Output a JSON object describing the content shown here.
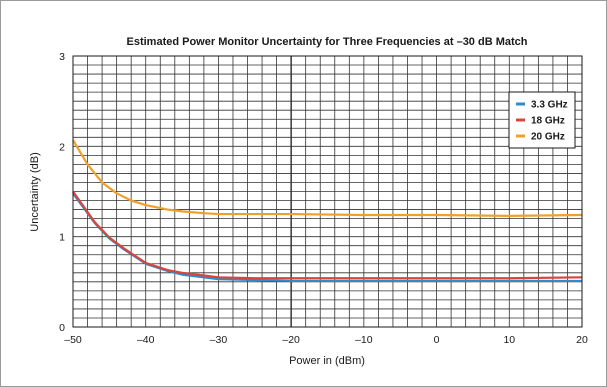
{
  "chart_data": {
    "type": "line",
    "title": "Estimated Power Monitor Uncertainty for Three Frequencies at –30 dB Match",
    "xlabel": "Power in (dBm)",
    "ylabel": "Uncertainty (dB)",
    "xlim": [
      -50,
      20
    ],
    "ylim": [
      0,
      3
    ],
    "x_ticks": [
      -50,
      -40,
      -30,
      -20,
      -10,
      0,
      10,
      20
    ],
    "x_tick_labels": [
      "–50",
      "–40",
      "–30",
      "–20",
      "–10",
      "0",
      "10",
      "20"
    ],
    "y_ticks": [
      0,
      1,
      2,
      3
    ],
    "y_tick_labels": [
      "0",
      "1",
      "2",
      "3"
    ],
    "grid": true,
    "legend_position": "top-right",
    "series": [
      {
        "name": "3.3 GHz",
        "color": "#2e8bcc",
        "x": [
          -50,
          -47,
          -45,
          -43,
          -40,
          -37,
          -35,
          -32,
          -30,
          -25,
          -20,
          -10,
          0,
          10,
          20
        ],
        "y": [
          1.48,
          1.15,
          0.98,
          0.86,
          0.7,
          0.62,
          0.58,
          0.55,
          0.53,
          0.52,
          0.51,
          0.51,
          0.51,
          0.51,
          0.51
        ]
      },
      {
        "name": "18 GHz",
        "color": "#d9453b",
        "x": [
          -50,
          -47,
          -45,
          -43,
          -40,
          -37,
          -35,
          -32,
          -30,
          -25,
          -20,
          -10,
          0,
          10,
          20
        ],
        "y": [
          1.5,
          1.16,
          0.99,
          0.87,
          0.71,
          0.63,
          0.6,
          0.57,
          0.55,
          0.54,
          0.54,
          0.54,
          0.54,
          0.54,
          0.55
        ]
      },
      {
        "name": "20 GHz",
        "color": "#f0a028",
        "x": [
          -50,
          -48,
          -46,
          -44,
          -42,
          -40,
          -37,
          -35,
          -32,
          -30,
          -25,
          -20,
          -10,
          0,
          10,
          20
        ],
        "y": [
          2.07,
          1.8,
          1.6,
          1.48,
          1.4,
          1.35,
          1.3,
          1.28,
          1.26,
          1.25,
          1.25,
          1.25,
          1.24,
          1.24,
          1.23,
          1.24
        ]
      }
    ]
  }
}
